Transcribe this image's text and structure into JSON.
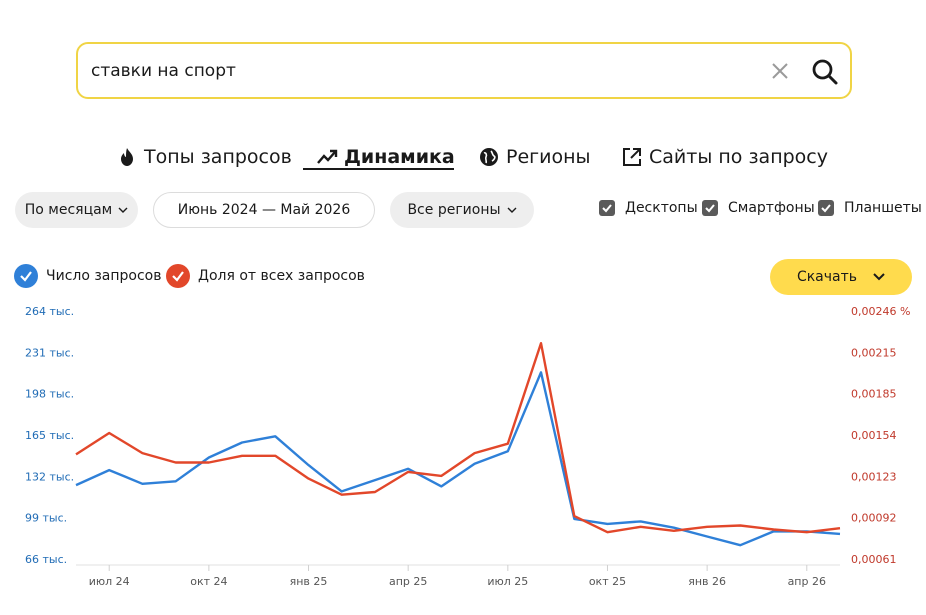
{
  "search": {
    "query": "ставки на спорт"
  },
  "tabs": [
    {
      "label": "Топы запросов",
      "icon": "fire-icon"
    },
    {
      "label": "Динамика",
      "icon": "trend-icon",
      "active": true
    },
    {
      "label": "Регионы",
      "icon": "globe-icon"
    },
    {
      "label": "Сайты по запросу",
      "icon": "external-link-icon"
    }
  ],
  "filters": {
    "period_group": "По месяцам",
    "date_range": "Июнь 2024 — Май 2026",
    "region": "Все регионы"
  },
  "devices": [
    {
      "label": "Десктопы",
      "checked": true
    },
    {
      "label": "Смартфоны",
      "checked": true
    },
    {
      "label": "Планшеты",
      "checked": true
    }
  ],
  "legend": {
    "requests_label": "Число запросов",
    "share_label": "Доля от всех запросов"
  },
  "download_label": "Скачать",
  "colors": {
    "blue": "#2f80d8",
    "red": "#e2472a",
    "accent": "#ffdb4d",
    "search_border": "#f0d445"
  },
  "chart_data": {
    "type": "line",
    "x": [
      "июн 24",
      "июл 24",
      "авг 24",
      "сен 24",
      "окт 24",
      "ноя 24",
      "дек 24",
      "янв 25",
      "фев 25",
      "мар 25",
      "апр 25",
      "май 25",
      "июн 25",
      "июл 25",
      "авг 25",
      "сен 25",
      "окт 25",
      "ноя 25",
      "дек 25",
      "янв 26",
      "фев 26",
      "мар 26",
      "апр 26",
      "май 26"
    ],
    "x_tick_labels": [
      "июл 24",
      "окт 24",
      "янв 25",
      "апр 25",
      "июл 25",
      "окт 25",
      "янв 26",
      "апр 26"
    ],
    "x_tick_indices": [
      1,
      4,
      7,
      10,
      13,
      16,
      19,
      22
    ],
    "left_axis": {
      "ticks": [
        66,
        99,
        132,
        165,
        198,
        231,
        264
      ],
      "tick_labels": [
        "66 тыс.",
        "99 тыс.",
        "132 тыс.",
        "165 тыс.",
        "198 тыс.",
        "231 тыс.",
        "264 тыс."
      ],
      "ylim": [
        66,
        264
      ]
    },
    "right_axis": {
      "tick_labels": [
        "0,00061",
        "0,00092",
        "0,00123",
        "0,00154",
        "0,00185",
        "0,00215",
        "0,00246 %"
      ],
      "ylim": [
        0.00061,
        0.00246
      ]
    },
    "series": [
      {
        "name": "Число запросов",
        "axis": "left",
        "color": "#2f80d8",
        "values": [
          125,
          137,
          126,
          128,
          147,
          159,
          164,
          141,
          120,
          129,
          138,
          124,
          142,
          152,
          215,
          98,
          94,
          96,
          91,
          84,
          77,
          88,
          88,
          86
        ]
      },
      {
        "name": "Доля от всех запросов",
        "axis": "right",
        "color": "#e2472a",
        "values": [
          0.00139,
          0.00155,
          0.0014,
          0.00133,
          0.00133,
          0.00138,
          0.00138,
          0.00121,
          0.00109,
          0.00111,
          0.00126,
          0.00123,
          0.0014,
          0.00147,
          0.00222,
          0.00093,
          0.00081,
          0.00085,
          0.00082,
          0.00085,
          0.00086,
          0.00083,
          0.00081,
          0.00084
        ]
      }
    ]
  }
}
